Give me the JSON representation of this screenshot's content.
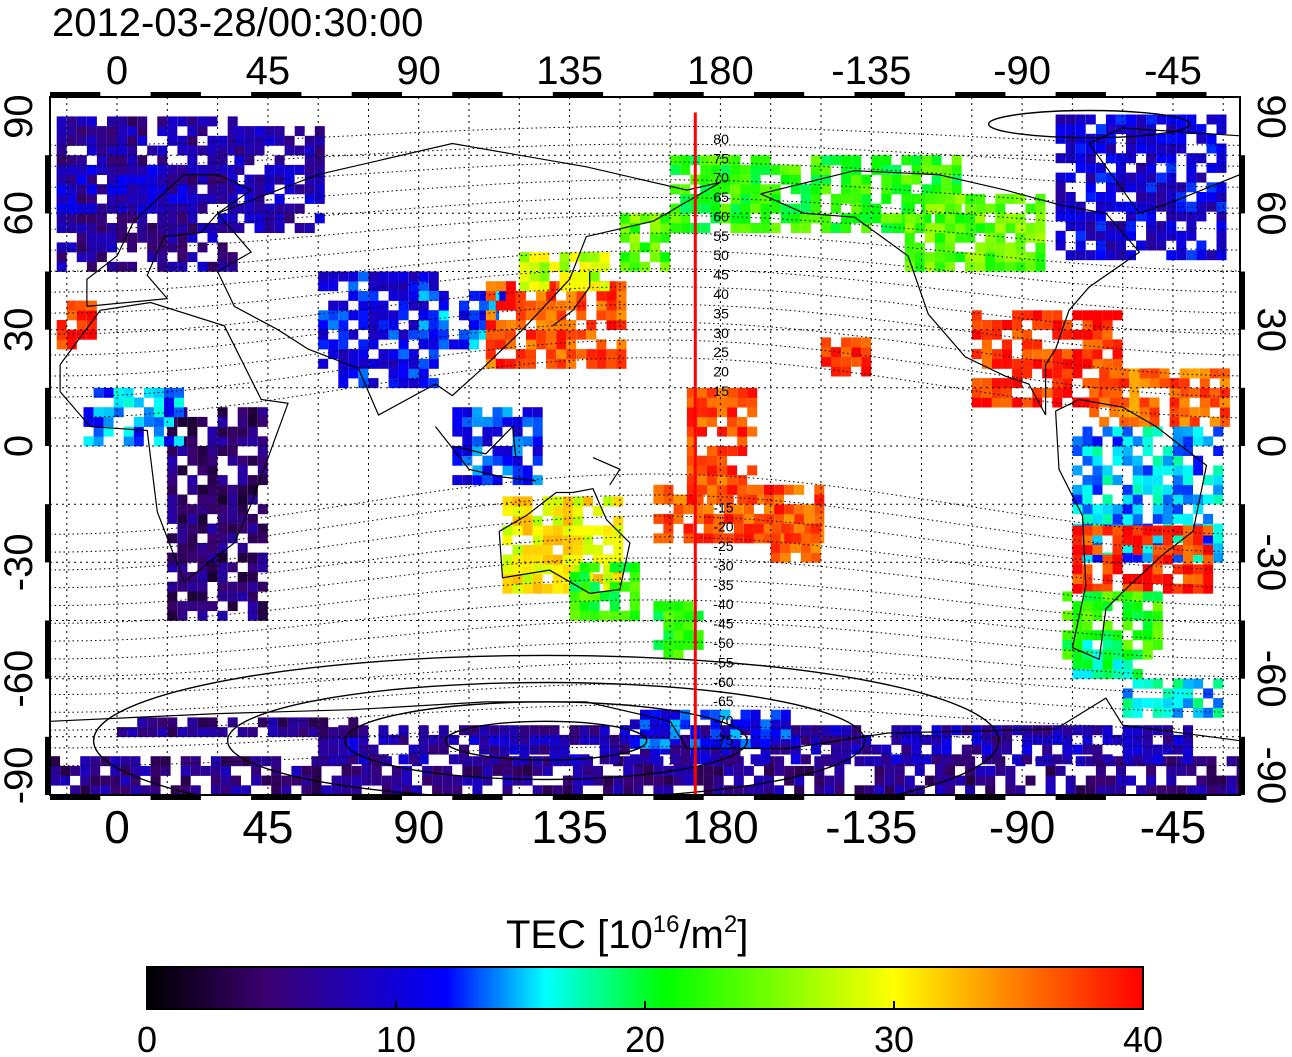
{
  "timestamp": "2012-03-28/00:30:00",
  "lon_ticks_labels": [
    "0",
    "45",
    "90",
    "135",
    "180",
    "-135",
    "-90",
    "-45"
  ],
  "lon_ticks_values": [
    0,
    45,
    90,
    135,
    180,
    225,
    270,
    315
  ],
  "lat_ticks_labels": [
    "90",
    "60",
    "30",
    "0",
    "-30",
    "-60",
    "-90"
  ],
  "lat_ticks_values": [
    90,
    60,
    30,
    0,
    -30,
    -60,
    -90
  ],
  "map_extent": {
    "lon_min": -20,
    "lon_max": 335,
    "lat_min": -90,
    "lat_max": 90
  },
  "grid": {
    "lon_step": 15,
    "lat_step": 15,
    "style": "dotted"
  },
  "meridian_marker": {
    "lon": 172.5,
    "color": "#ff0000"
  },
  "mag_lat_labels": [
    "80",
    "75",
    "70",
    "65",
    "60",
    "55",
    "50",
    "45",
    "40",
    "35",
    "30",
    "25",
    "20",
    "15",
    "-15",
    "-20",
    "-25",
    "-30",
    "-35",
    "-40",
    "-45",
    "-50",
    "-55",
    "-60",
    "-65",
    "-70",
    "-75"
  ],
  "colorbar": {
    "title_main": "TEC  [10",
    "title_sup1": "16",
    "title_mid": "/m",
    "title_sup2": "2",
    "title_end": "]",
    "min": 0,
    "max": 40,
    "tick_labels": [
      "0",
      "10",
      "20",
      "30",
      "40"
    ],
    "tick_values": [
      0,
      10,
      20,
      30,
      40
    ],
    "stops": [
      "#000000",
      "#3a0070",
      "#0000ff",
      "#00ffff",
      "#00ff00",
      "#ffff00",
      "#ff8000",
      "#ff0000"
    ]
  }
}
